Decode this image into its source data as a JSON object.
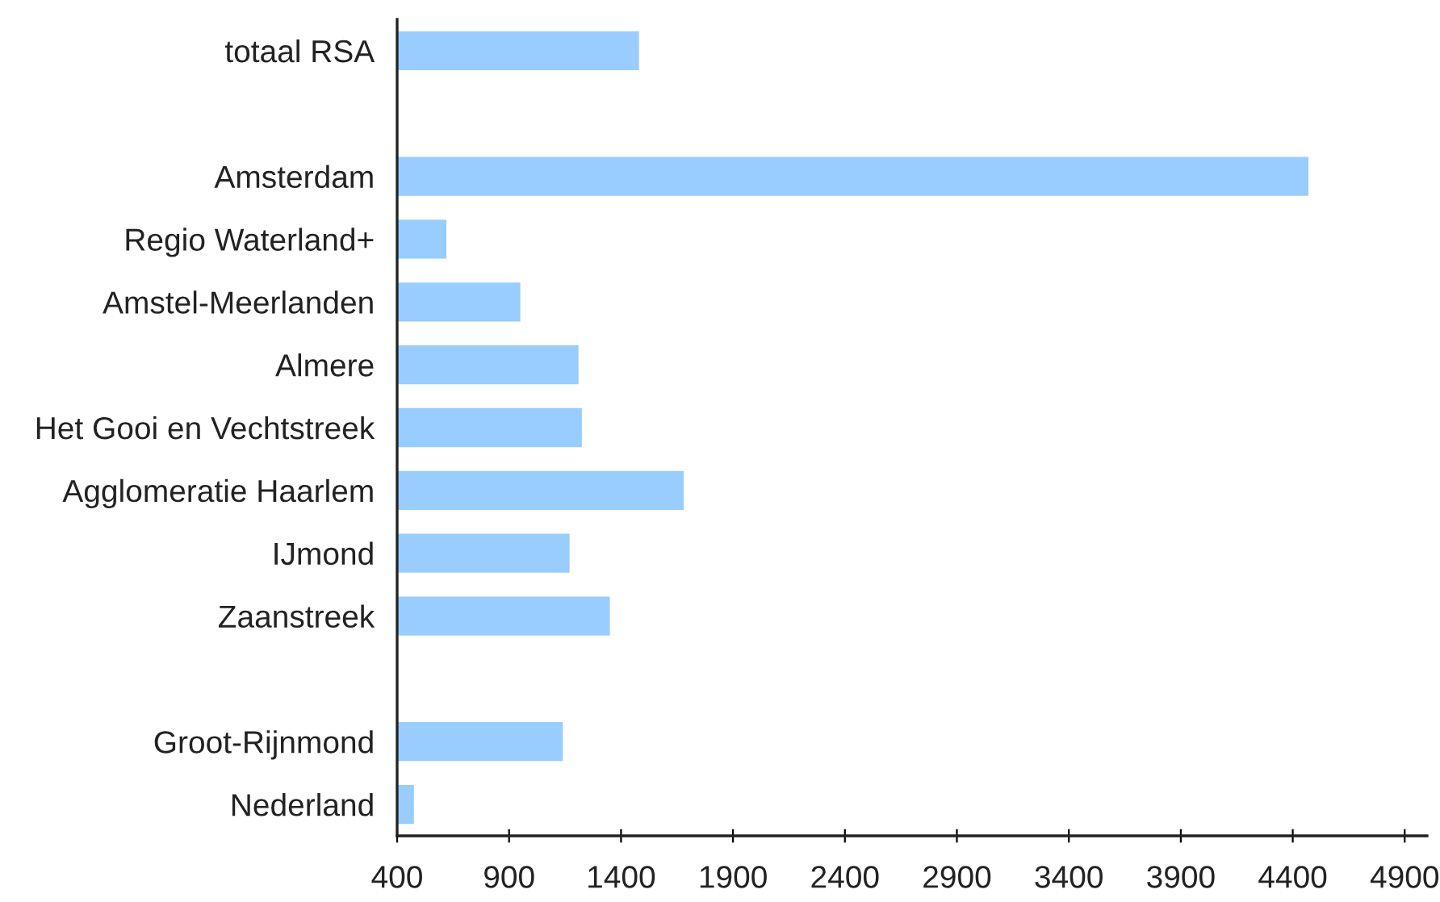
{
  "chart_data": {
    "type": "bar",
    "orientation": "horizontal",
    "categories": [
      "totaal RSA",
      null,
      "Amsterdam",
      "Regio Waterland+",
      "Amstel-Meerlanden",
      "Almere",
      "Het Gooi en Vechtstreek",
      "Agglomeratie Haarlem",
      "IJmond",
      "Zaanstreek",
      null,
      "Groot-Rijnmond",
      "Nederland"
    ],
    "values": [
      1480,
      null,
      4470,
      620,
      950,
      1210,
      1225,
      1680,
      1170,
      1350,
      null,
      1140,
      475
    ],
    "color": "#99ccff",
    "xlim": [
      400,
      5000
    ],
    "xticks": [
      400,
      900,
      1400,
      1900,
      2400,
      2900,
      3400,
      3900,
      4400,
      4900
    ],
    "grid": false,
    "legend": false
  }
}
